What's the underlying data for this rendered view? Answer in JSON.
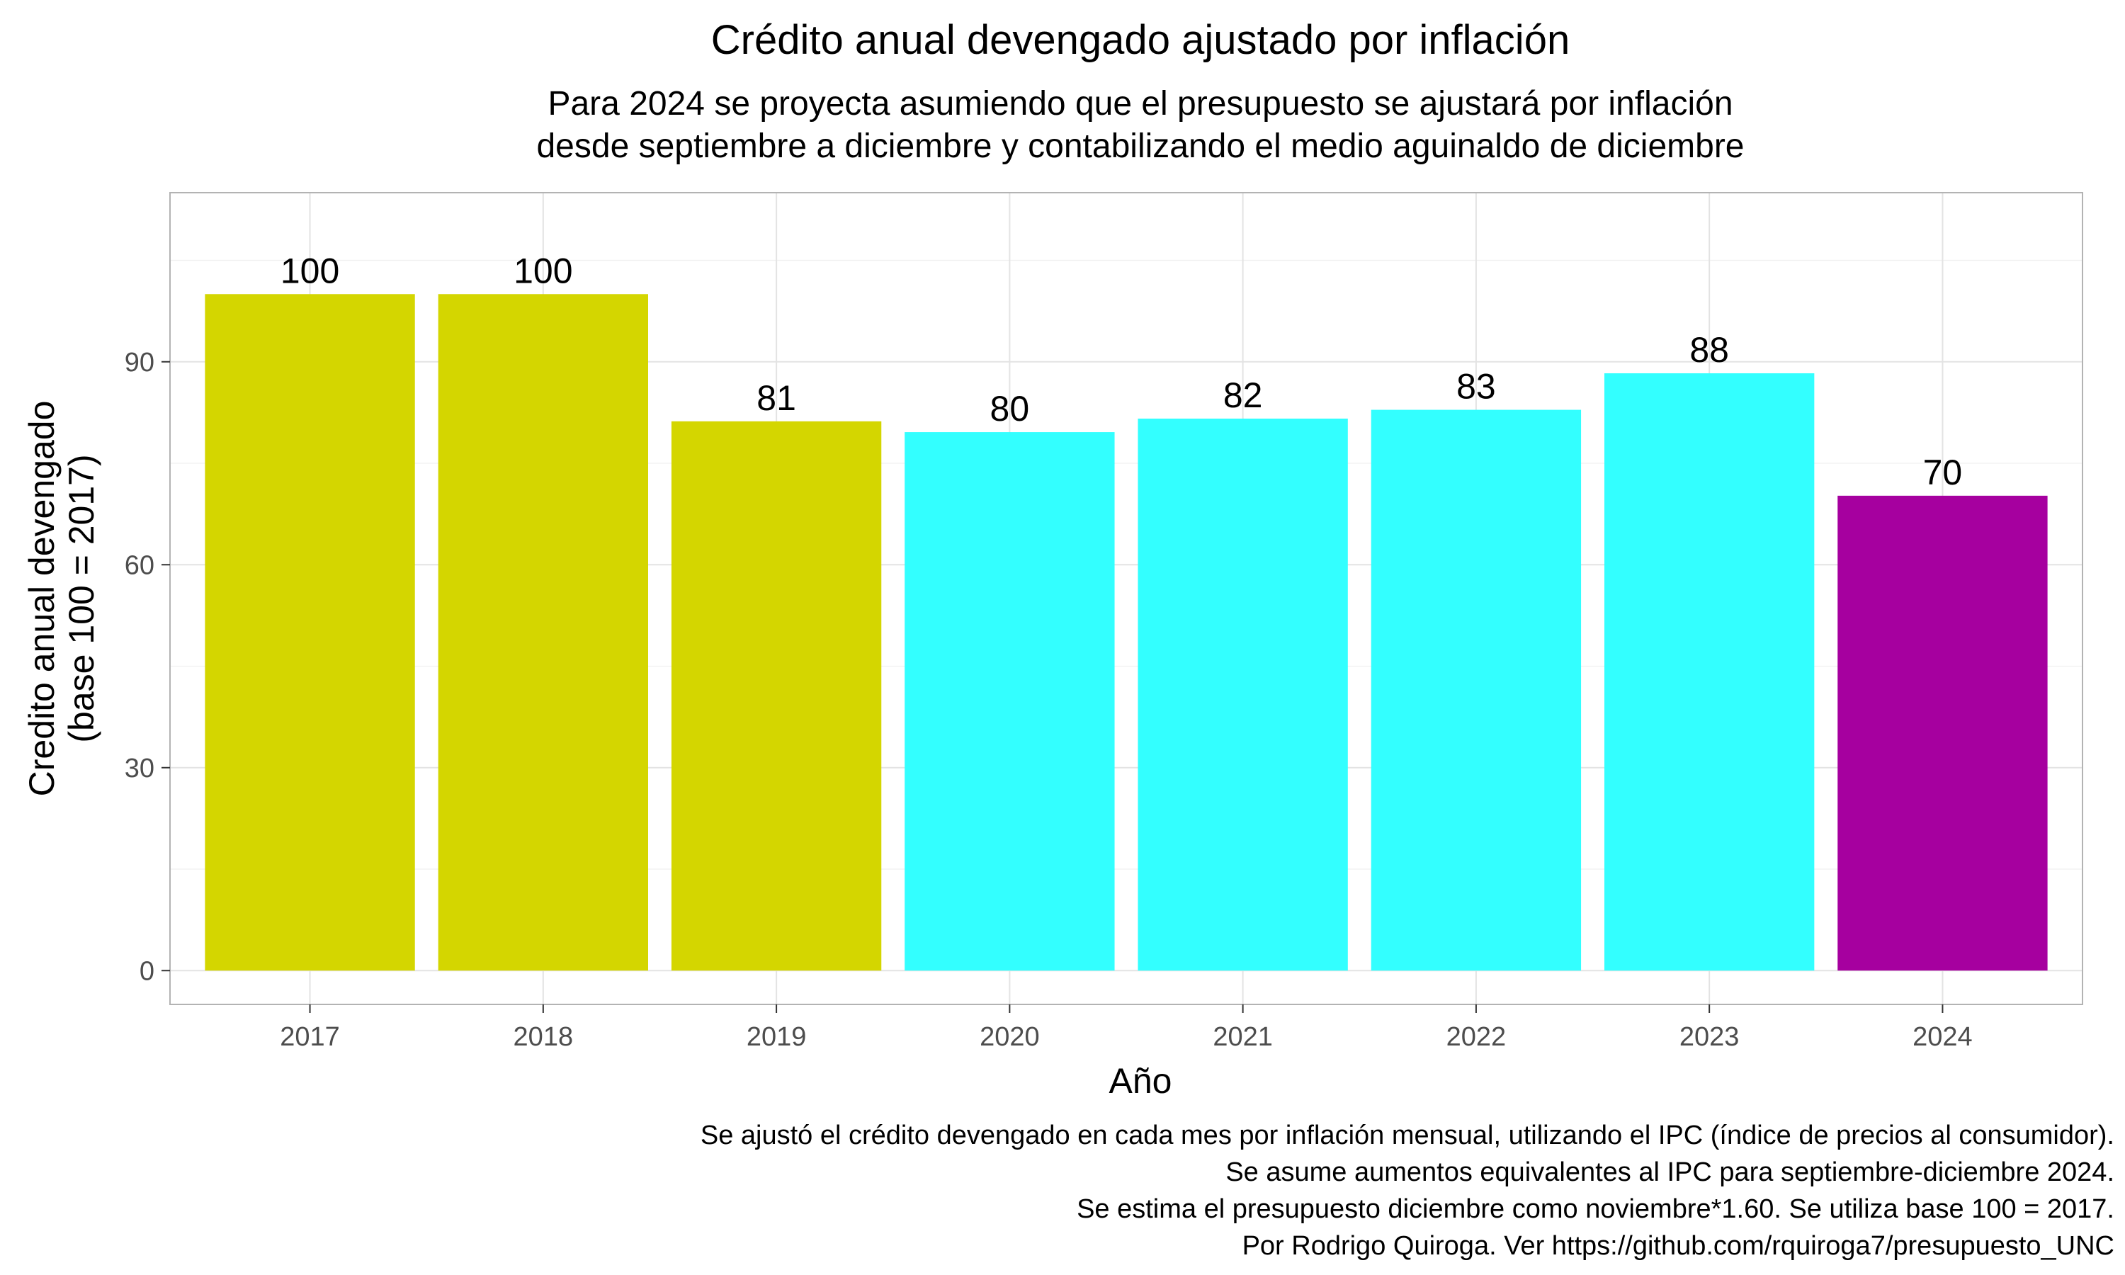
{
  "chart_data": {
    "type": "bar",
    "title": "Crédito anual devengado ajustado por inflación",
    "subtitle": [
      "Para 2024 se proyecta asumiendo que el presupuesto se ajustará por inflación",
      "desde septiembre a diciembre y contabilizando el medio aguinaldo de diciembre"
    ],
    "xlabel": "Año",
    "ylabel": [
      "Credito anual devengado",
      "(base 100 = 2017)"
    ],
    "categories": [
      "2017",
      "2018",
      "2019",
      "2020",
      "2021",
      "2022",
      "2023",
      "2024"
    ],
    "values": [
      100,
      100,
      81.2,
      79.6,
      81.6,
      82.9,
      88.3,
      70.2
    ],
    "value_labels": [
      "100",
      "100",
      "81",
      "80",
      "82",
      "83",
      "88",
      "70"
    ],
    "bar_colors": [
      "#d4d600",
      "#d4d600",
      "#d4d600",
      "#33ffff",
      "#33ffff",
      "#33ffff",
      "#33ffff",
      "#a6009f"
    ],
    "ylim": [
      -5,
      115
    ],
    "yticks": [
      0,
      30,
      60,
      90
    ],
    "ytick_labels": [
      "0",
      "30",
      "60",
      "90"
    ],
    "grid": true,
    "legend": "none",
    "caption": [
      "Se ajustó el crédito devengado en cada mes por inflación mensual, utilizando el IPC (índice de precios al consumidor).",
      "Se asume aumentos equivalentes al IPC para septiembre-diciembre 2024.",
      "Se estima el presupuesto diciembre como noviembre*1.60. Se utiliza base 100 = 2017.",
      "Por Rodrigo Quiroga. Ver https://github.com/rquiroga7/presupuesto_UNC "
    ]
  }
}
